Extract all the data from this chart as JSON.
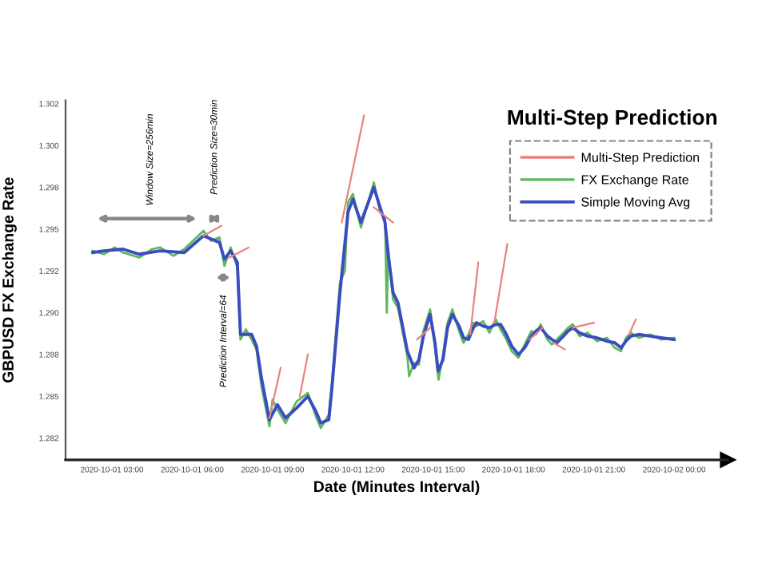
{
  "chart_data": {
    "type": "line",
    "title": "Multi-Step Prediction",
    "xlabel": "Date (Minutes Interval)",
    "ylabel": "GBPUSD FX Exchange Rate",
    "xlim": [
      "2020-10-01T01:16",
      "2020-10-02T02:00"
    ],
    "ylim": [
      1.2812,
      1.3027
    ],
    "xticks": [
      {
        "value": "2020-10-01T03:00",
        "label": "2020-10-01 03:00"
      },
      {
        "value": "2020-10-01T06:00",
        "label": "2020-10-01 06:00"
      },
      {
        "value": "2020-10-01T09:00",
        "label": "2020-10-01 09:00"
      },
      {
        "value": "2020-10-01T12:00",
        "label": "2020-10-01 12:00"
      },
      {
        "value": "2020-10-01T15:00",
        "label": "2020-10-01 15:00"
      },
      {
        "value": "2020-10-01T18:00",
        "label": "2020-10-01 18:00"
      },
      {
        "value": "2020-10-01T21:00",
        "label": "2020-10-01 21:00"
      },
      {
        "value": "2020-10-02T00:00",
        "label": "2020-10-02 00:00"
      }
    ],
    "yticks": [
      {
        "value": 1.3025,
        "label": "1.302"
      },
      {
        "value": 1.3,
        "label": "1.300"
      },
      {
        "value": 1.2975,
        "label": "1.298"
      },
      {
        "value": 1.295,
        "label": "1.295"
      },
      {
        "value": 1.2925,
        "label": "1.292"
      },
      {
        "value": 1.29,
        "label": "1.290"
      },
      {
        "value": 1.2875,
        "label": "1.288"
      },
      {
        "value": 1.285,
        "label": "1.285"
      },
      {
        "value": 1.2825,
        "label": "1.282"
      }
    ],
    "grid": false,
    "legend": "top right",
    "marker": "none",
    "line_style": "solid",
    "annotations": [
      "Window Size=256min",
      "Prediction Size=30min",
      "Prediction Interval=64"
    ],
    "series": [
      {
        "name": "Multi-Step Prediction",
        "color": "#e8837f",
        "x": [
          "2020-10-01T06:25",
          "2020-10-01T07:05",
          "2020-10-01T07:12",
          "2020-10-01T07:23",
          "2020-10-01T08:06",
          "2020-10-01T08:30",
          "2020-10-01T08:53",
          "2020-10-01T09:18",
          "2020-10-01T09:36",
          "2020-10-01T10:01",
          "2020-10-01T10:19",
          "2020-10-01T10:54",
          "2020-10-01T11:35",
          "2020-10-01T12:25",
          "2020-10-01T12:36",
          "2020-10-01T12:47",
          "2020-10-01T13:30",
          "2020-10-01T14:00",
          "2020-10-01T14:24",
          "2020-10-01T14:53",
          "2020-10-01T15:30",
          "2020-10-01T16:23",
          "2020-10-01T16:41",
          "2020-10-01T17:00",
          "2020-10-01T17:17",
          "2020-10-01T17:46",
          "2020-10-01T18:12",
          "2020-10-01T18:36",
          "2020-10-01T19:05",
          "2020-10-01T19:18",
          "2020-10-01T19:30",
          "2020-10-01T19:55",
          "2020-10-01T20:06",
          "2020-10-01T20:13",
          "2020-10-01T21:00",
          "2020-10-01T21:30",
          "2020-10-01T22:19",
          "2020-10-01T22:34"
        ],
        "values": [
          1.2946,
          1.2952,
          null,
          1.2933,
          1.2939,
          null,
          1.2837,
          1.2867,
          null,
          1.285,
          1.2875,
          null,
          1.2954,
          1.3018,
          null,
          1.2963,
          1.2954,
          null,
          1.2884,
          1.2891,
          null,
          1.2887,
          1.293,
          null,
          1.2894,
          1.2941,
          null,
          1.2884,
          1.2891,
          null,
          1.2882,
          1.2878,
          null,
          1.2891,
          1.2894,
          null,
          1.2887,
          1.2896
        ]
      },
      {
        "name": "FX Exchange Rate",
        "color": "#5cb85c",
        "x": [
          "2020-10-01T02:17",
          "2020-10-01T02:42",
          "2020-10-01T03:06",
          "2020-10-01T03:25",
          "2020-10-01T04:01",
          "2020-10-01T04:30",
          "2020-10-01T04:48",
          "2020-10-01T05:18",
          "2020-10-01T05:42",
          "2020-10-01T06:25",
          "2020-10-01T06:42",
          "2020-10-01T07:01",
          "2020-10-01T07:12",
          "2020-10-01T07:26",
          "2020-10-01T07:41",
          "2020-10-01T07:48",
          "2020-10-01T08:00",
          "2020-10-01T08:13",
          "2020-10-01T08:24",
          "2020-10-01T08:35",
          "2020-10-01T08:53",
          "2020-10-01T09:00",
          "2020-10-01T09:11",
          "2020-10-01T09:29",
          "2020-10-01T09:54",
          "2020-10-01T10:19",
          "2020-10-01T10:37",
          "2020-10-01T10:48",
          "2020-10-01T11:06",
          "2020-10-01T11:13",
          "2020-10-01T11:31",
          "2020-10-01T11:42",
          "2020-10-01T11:49",
          "2020-10-01T12:00",
          "2020-10-01T12:18",
          "2020-10-01T12:47",
          "2020-10-01T13:01",
          "2020-10-01T13:12",
          "2020-10-01T13:16",
          "2020-10-01T13:19",
          "2020-10-01T13:30",
          "2020-10-01T13:41",
          "2020-10-01T13:52",
          "2020-10-01T14:02",
          "2020-10-01T14:06",
          "2020-10-01T14:17",
          "2020-10-01T14:28",
          "2020-10-01T14:38",
          "2020-10-01T14:53",
          "2020-10-01T15:04",
          "2020-10-01T15:11",
          "2020-10-01T15:12",
          "2020-10-01T15:22",
          "2020-10-01T15:32",
          "2020-10-01T15:43",
          "2020-10-01T15:58",
          "2020-10-01T16:08",
          "2020-10-01T16:19",
          "2020-10-01T16:30",
          "2020-10-01T16:37",
          "2020-10-01T16:52",
          "2020-10-01T17:06",
          "2020-10-01T17:20",
          "2020-10-01T17:31",
          "2020-10-01T17:42",
          "2020-10-01T17:56",
          "2020-10-01T18:11",
          "2020-10-01T18:25",
          "2020-10-01T18:40",
          "2020-10-01T18:50",
          "2020-10-01T19:01",
          "2020-10-01T19:16",
          "2020-10-01T19:26",
          "2020-10-01T19:37",
          "2020-10-01T19:52",
          "2020-10-01T20:02",
          "2020-10-01T20:13",
          "2020-10-01T20:28",
          "2020-10-01T20:46",
          "2020-10-01T21:07",
          "2020-10-01T21:29",
          "2020-10-01T21:47",
          "2020-10-01T22:01",
          "2020-10-01T22:12",
          "2020-10-01T22:23",
          "2020-10-01T22:41",
          "2020-10-01T23:06",
          "2020-10-01T23:31",
          "2020-10-02T00:00"
        ],
        "values": [
          1.2937,
          1.2935,
          1.2939,
          1.2936,
          1.2933,
          1.2938,
          1.2939,
          1.2934,
          1.2938,
          1.2949,
          1.2943,
          1.2945,
          1.2928,
          1.2939,
          1.2927,
          1.2884,
          1.289,
          1.2884,
          1.2878,
          1.2856,
          1.2832,
          1.2848,
          1.2842,
          1.2834,
          1.2847,
          1.2852,
          1.2838,
          1.2831,
          1.2839,
          1.2858,
          1.2918,
          1.2925,
          1.2966,
          1.2971,
          1.2951,
          1.2978,
          1.296,
          1.2957,
          1.29,
          1.2938,
          1.2908,
          1.2903,
          1.2888,
          1.2874,
          1.2862,
          1.287,
          1.2869,
          1.2889,
          1.2902,
          1.2879,
          1.2862,
          1.286,
          1.2875,
          1.2894,
          1.2902,
          1.2889,
          1.2882,
          1.2887,
          1.2894,
          1.2892,
          1.2895,
          1.2888,
          1.2896,
          1.289,
          1.2885,
          1.2877,
          1.2873,
          1.2881,
          1.2889,
          1.2887,
          1.2893,
          1.2884,
          1.2881,
          1.2884,
          1.2888,
          1.2891,
          1.2893,
          1.2886,
          1.2888,
          1.2883,
          1.2885,
          1.2879,
          1.2877,
          1.2885,
          1.2888,
          1.2885,
          1.2887,
          1.2884,
          1.2885
        ]
      },
      {
        "name": "Simple Moving Avg",
        "color": "#3b4cc0",
        "x": [
          "2020-10-01T02:17",
          "2020-10-01T02:42",
          "2020-10-01T03:25",
          "2020-10-01T04:01",
          "2020-10-01T04:48",
          "2020-10-01T05:42",
          "2020-10-01T06:25",
          "2020-10-01T07:01",
          "2020-10-01T07:12",
          "2020-10-01T07:26",
          "2020-10-01T07:41",
          "2020-10-01T07:48",
          "2020-10-01T08:13",
          "2020-10-01T08:24",
          "2020-10-01T08:35",
          "2020-10-01T08:53",
          "2020-10-01T09:11",
          "2020-10-01T09:29",
          "2020-10-01T09:54",
          "2020-10-01T10:19",
          "2020-10-01T10:37",
          "2020-10-01T10:48",
          "2020-10-01T11:06",
          "2020-10-01T11:13",
          "2020-10-01T11:31",
          "2020-10-01T11:49",
          "2020-10-01T12:00",
          "2020-10-01T12:18",
          "2020-10-01T12:47",
          "2020-10-01T13:01",
          "2020-10-01T13:12",
          "2020-10-01T13:19",
          "2020-10-01T13:30",
          "2020-10-01T13:41",
          "2020-10-01T13:52",
          "2020-10-01T14:02",
          "2020-10-01T14:17",
          "2020-10-01T14:28",
          "2020-10-01T14:38",
          "2020-10-01T14:53",
          "2020-10-01T15:04",
          "2020-10-01T15:11",
          "2020-10-01T15:22",
          "2020-10-01T15:32",
          "2020-10-01T15:43",
          "2020-10-01T15:58",
          "2020-10-01T16:08",
          "2020-10-01T16:19",
          "2020-10-01T16:30",
          "2020-10-01T16:37",
          "2020-10-01T16:52",
          "2020-10-01T17:06",
          "2020-10-01T17:20",
          "2020-10-01T17:31",
          "2020-10-01T17:42",
          "2020-10-01T17:56",
          "2020-10-01T18:11",
          "2020-10-01T18:25",
          "2020-10-01T18:40",
          "2020-10-01T18:50",
          "2020-10-01T19:01",
          "2020-10-01T19:16",
          "2020-10-01T19:26",
          "2020-10-01T19:37",
          "2020-10-01T19:52",
          "2020-10-01T20:02",
          "2020-10-01T20:13",
          "2020-10-01T20:28",
          "2020-10-01T20:46",
          "2020-10-01T21:07",
          "2020-10-01T21:29",
          "2020-10-01T21:47",
          "2020-10-01T22:01",
          "2020-10-01T22:12",
          "2020-10-01T22:23",
          "2020-10-01T22:41",
          "2020-10-01T23:06",
          "2020-10-01T23:31",
          "2020-10-02T00:00"
        ],
        "values": [
          1.2936,
          1.2937,
          1.2938,
          1.2935,
          1.2937,
          1.2936,
          1.2946,
          1.2942,
          1.2932,
          1.2937,
          1.293,
          1.2887,
          1.2887,
          1.288,
          1.2861,
          1.2836,
          1.2845,
          1.2837,
          1.2843,
          1.285,
          1.2841,
          1.2834,
          1.2836,
          1.2855,
          1.2912,
          1.296,
          1.2968,
          1.2954,
          1.2975,
          1.2963,
          1.2954,
          1.2935,
          1.2912,
          1.2906,
          1.2891,
          1.2877,
          1.2867,
          1.2872,
          1.2886,
          1.2899,
          1.2882,
          1.2865,
          1.2872,
          1.2891,
          1.2899,
          1.2892,
          1.2885,
          1.2884,
          1.2891,
          1.2894,
          1.2892,
          1.2891,
          1.2893,
          1.2893,
          1.2888,
          1.288,
          1.2875,
          1.2879,
          1.2886,
          1.2889,
          1.2891,
          1.2886,
          1.2884,
          1.2882,
          1.2886,
          1.2889,
          1.2891,
          1.2888,
          1.2886,
          1.2885,
          1.2883,
          1.2882,
          1.2879,
          1.2883,
          1.2886,
          1.2887,
          1.2886,
          1.2885,
          1.2884
        ]
      }
    ]
  }
}
